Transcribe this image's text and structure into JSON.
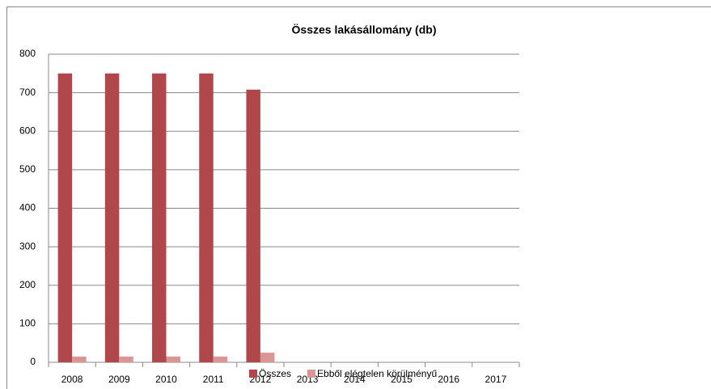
{
  "chart_data": {
    "type": "bar",
    "title": "Összes lakásállomány (db)",
    "categories": [
      "2008",
      "2009",
      "2010",
      "2011",
      "2012",
      "2013",
      "2014",
      "2015",
      "2016",
      "2017"
    ],
    "series": [
      {
        "name": "Összes",
        "color": "#b0474a",
        "values": [
          750,
          750,
          750,
          750,
          708,
          null,
          null,
          null,
          null,
          null
        ]
      },
      {
        "name": "Ebből elégtelen körülményű",
        "color": "#d99694",
        "values": [
          15,
          15,
          15,
          15,
          25,
          null,
          null,
          null,
          null,
          null
        ]
      }
    ],
    "ylim": [
      0,
      800
    ],
    "yticks": [
      0,
      100,
      200,
      300,
      400,
      500,
      600,
      700,
      800
    ],
    "grid": true,
    "legend": "bottom"
  }
}
